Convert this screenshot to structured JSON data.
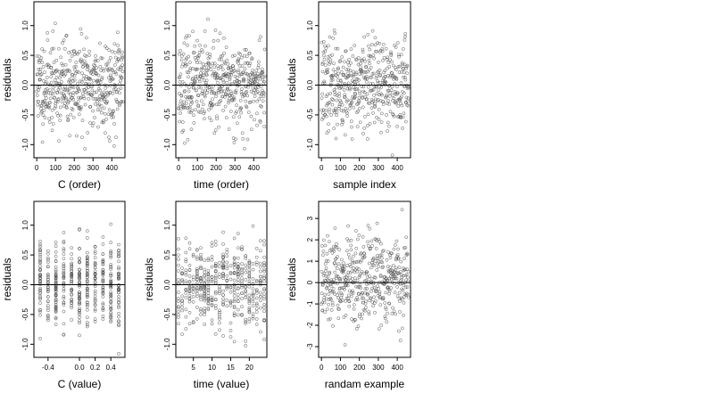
{
  "chart_data": [
    {
      "type": "scatter",
      "xlabel": "C (order)",
      "ylabel": "residuals",
      "xlim": [
        -15,
        470
      ],
      "ylim": [
        -1.22,
        1.4
      ],
      "xticks": [
        0,
        100,
        200,
        300,
        400
      ],
      "xtick_labels": [
        "0",
        "100",
        "200",
        "300",
        "400"
      ],
      "yticks": [
        -1.0,
        -0.5,
        0.0,
        0.5,
        1.0
      ],
      "ytick_labels": [
        "-1.0",
        "-0.5",
        "0.0",
        "0.5",
        "1.0"
      ],
      "hline": 0,
      "n_points": 480,
      "point_spread": 0.38,
      "seed": 11,
      "x_pattern": "index"
    },
    {
      "type": "scatter",
      "xlabel": "time (order)",
      "ylabel": "residuals",
      "xlim": [
        -15,
        470
      ],
      "ylim": [
        -1.22,
        1.4
      ],
      "xticks": [
        0,
        100,
        200,
        300,
        400
      ],
      "xtick_labels": [
        "0",
        "100",
        "200",
        "300",
        "400"
      ],
      "yticks": [
        -1.0,
        -0.5,
        0.0,
        0.5,
        1.0
      ],
      "ytick_labels": [
        "-1.0",
        "-0.5",
        "0.0",
        "0.5",
        "1.0"
      ],
      "hline": 0,
      "n_points": 480,
      "point_spread": 0.36,
      "seed": 23,
      "x_pattern": "index"
    },
    {
      "type": "scatter",
      "xlabel": "sample index",
      "ylabel": "residuals",
      "xlim": [
        -15,
        470
      ],
      "ylim": [
        -1.22,
        1.4
      ],
      "xticks": [
        0,
        100,
        200,
        300,
        400
      ],
      "xtick_labels": [
        "0",
        "100",
        "200",
        "300",
        "400"
      ],
      "yticks": [
        -1.0,
        -0.5,
        0.0,
        0.5,
        1.0
      ],
      "ytick_labels": [
        "-1.0",
        "-0.5",
        "0.0",
        "0.5",
        "1.0"
      ],
      "hline": 0,
      "n_points": 480,
      "point_spread": 0.38,
      "seed": 37,
      "x_pattern": "index"
    },
    {
      "type": "scatter",
      "xlabel": "C (value)",
      "ylabel": "residuals",
      "xlim": [
        -0.58,
        0.58
      ],
      "ylim": [
        -1.22,
        1.4
      ],
      "xticks": [
        -0.4,
        0.0,
        0.2,
        0.4
      ],
      "xtick_labels": [
        "-0.4",
        "0.0",
        "0.2",
        "0.4"
      ],
      "yticks": [
        -1.0,
        -0.5,
        0.0,
        0.5,
        1.0
      ],
      "ytick_labels": [
        "-1.0",
        "-0.5",
        "0.0",
        "0.5",
        "1.0"
      ],
      "hline": 0,
      "n_points": 480,
      "point_spread": 0.36,
      "seed": 41,
      "x_levels": [
        -0.5,
        -0.4,
        -0.3,
        -0.2,
        -0.1,
        0.0,
        0.1,
        0.2,
        0.3,
        0.4,
        0.5
      ]
    },
    {
      "type": "scatter",
      "xlabel": "time (value)",
      "ylabel": "residuals",
      "xlim": [
        0.3,
        24.7
      ],
      "ylim": [
        -1.22,
        1.4
      ],
      "xticks": [
        5,
        10,
        15,
        20
      ],
      "xtick_labels": [
        "5",
        "10",
        "15",
        "20"
      ],
      "yticks": [
        -1.0,
        -0.5,
        0.0,
        0.5,
        1.0
      ],
      "ytick_labels": [
        "-1.0",
        "-0.5",
        "0.0",
        "0.5",
        "1.0"
      ],
      "hline": 0,
      "n_points": 480,
      "point_spread": 0.36,
      "seed": 53,
      "x_levels": [
        1,
        2,
        3,
        4,
        5,
        6,
        7,
        8,
        9,
        10,
        11,
        12,
        13,
        14,
        15,
        16,
        17,
        18,
        19,
        20,
        21,
        22,
        23,
        24
      ]
    },
    {
      "type": "scatter",
      "xlabel": "randam example",
      "ylabel": "residuals",
      "xlim": [
        -15,
        470
      ],
      "ylim": [
        -3.5,
        3.8
      ],
      "xticks": [
        0,
        100,
        200,
        300,
        400
      ],
      "xtick_labels": [
        "0",
        "100",
        "200",
        "300",
        "400"
      ],
      "yticks": [
        -3,
        -2,
        -1,
        0,
        1,
        2,
        3
      ],
      "ytick_labels": [
        "-3",
        "-2",
        "-1",
        "0",
        "1",
        "2",
        "3"
      ],
      "hline": 0,
      "n_points": 480,
      "point_spread": 1.0,
      "seed": 67,
      "x_pattern": "index"
    }
  ]
}
